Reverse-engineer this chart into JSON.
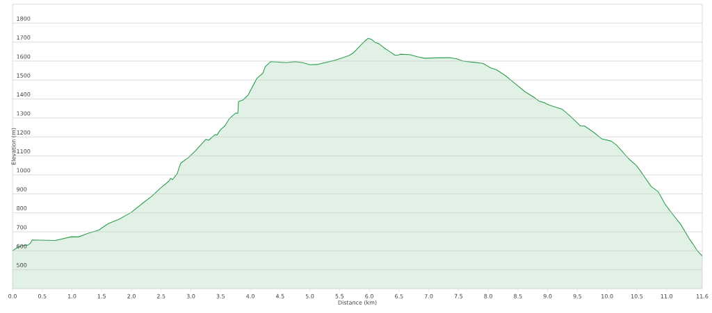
{
  "chart_data": {
    "type": "area",
    "xlabel": "Distance  (km)",
    "ylabel": "Elevation (m)",
    "x": [
      0,
      0.07,
      0.14,
      0.26,
      0.3,
      0.33,
      0.72,
      0.99,
      1.11,
      1.26,
      1.45,
      1.61,
      1.8,
      1.99,
      2.19,
      2.34,
      2.49,
      2.63,
      2.66,
      2.69,
      2.77,
      2.8,
      2.83,
      2.96,
      3.07,
      3.25,
      3.3,
      3.4,
      3.44,
      3.5,
      3.57,
      3.65,
      3.75,
      3.79,
      3.8,
      3.88,
      3.96,
      4.11,
      4.21,
      4.25,
      4.34,
      4.61,
      4.75,
      4.88,
      5.0,
      5.12,
      5.42,
      5.66,
      5.73,
      5.89,
      5.98,
      6.04,
      6.1,
      6.16,
      6.27,
      6.35,
      6.43,
      6.48,
      6.52,
      6.68,
      6.81,
      6.93,
      7.12,
      7.35,
      7.47,
      7.58,
      7.74,
      7.91,
      8.04,
      8.14,
      8.29,
      8.43,
      8.62,
      8.78,
      8.85,
      8.95,
      9.03,
      9.24,
      9.39,
      9.55,
      9.62,
      9.78,
      9.91,
      10.07,
      10.16,
      10.36,
      10.49,
      10.55,
      10.74,
      10.86,
      10.97,
      11.09,
      11.24,
      11.38,
      11.45,
      11.51,
      11.6
    ],
    "series": [
      {
        "color": "#2e9e50",
        "values": [
          600,
          615,
          627,
          630,
          640,
          657,
          654,
          674,
          673,
          691,
          709,
          743,
          768,
          801,
          851,
          887,
          931,
          967,
          982,
          975,
          1007,
          1037,
          1062,
          1092,
          1125,
          1187,
          1183,
          1211,
          1211,
          1239,
          1258,
          1298,
          1325,
          1325,
          1386,
          1396,
          1420,
          1509,
          1536,
          1570,
          1597,
          1592,
          1597,
          1592,
          1581,
          1582,
          1604,
          1629,
          1643,
          1695,
          1720,
          1714,
          1698,
          1692,
          1665,
          1649,
          1631,
          1631,
          1636,
          1634,
          1623,
          1615,
          1617,
          1618,
          1612,
          1600,
          1594,
          1588,
          1564,
          1554,
          1523,
          1487,
          1438,
          1407,
          1390,
          1380,
          1368,
          1347,
          1307,
          1258,
          1258,
          1223,
          1190,
          1178,
          1157,
          1086,
          1050,
          1025,
          939,
          911,
          848,
          798,
          738,
          664,
          633,
          603,
          572
        ]
      }
    ],
    "xlim": [
      0,
      11.6
    ],
    "ylim": [
      400,
      1900
    ],
    "xticks": [
      {
        "value": 0,
        "label": "0.0"
      },
      {
        "value": 0.5,
        "label": "0.5"
      },
      {
        "value": 1,
        "label": "1.0"
      },
      {
        "value": 1.5,
        "label": "1.5"
      },
      {
        "value": 2,
        "label": "2.0"
      },
      {
        "value": 2.5,
        "label": "2.5"
      },
      {
        "value": 3,
        "label": "3.0"
      },
      {
        "value": 3.5,
        "label": "3.5"
      },
      {
        "value": 4,
        "label": "4.0"
      },
      {
        "value": 4.5,
        "label": "4.5"
      },
      {
        "value": 5,
        "label": "5.0"
      },
      {
        "value": 5.5,
        "label": "5.5"
      },
      {
        "value": 6,
        "label": "6.0"
      },
      {
        "value": 6.5,
        "label": "6.5"
      },
      {
        "value": 7,
        "label": "7.0"
      },
      {
        "value": 7.5,
        "label": "7.5"
      },
      {
        "value": 8,
        "label": "8.0"
      },
      {
        "value": 8.5,
        "label": "8.5"
      },
      {
        "value": 9,
        "label": "9.0"
      },
      {
        "value": 9.5,
        "label": "9.5"
      },
      {
        "value": 10,
        "label": "10.0"
      },
      {
        "value": 10.5,
        "label": "10.5"
      },
      {
        "value": 11,
        "label": "11.0"
      },
      {
        "value": 11.6,
        "label": "11.6"
      }
    ],
    "yticks": [
      500,
      600,
      700,
      800,
      900,
      1000,
      1100,
      1200,
      1300,
      1400,
      1500,
      1600,
      1700,
      1800
    ],
    "grid": "y",
    "legend": false,
    "marker": "none",
    "line_style": "solid"
  }
}
